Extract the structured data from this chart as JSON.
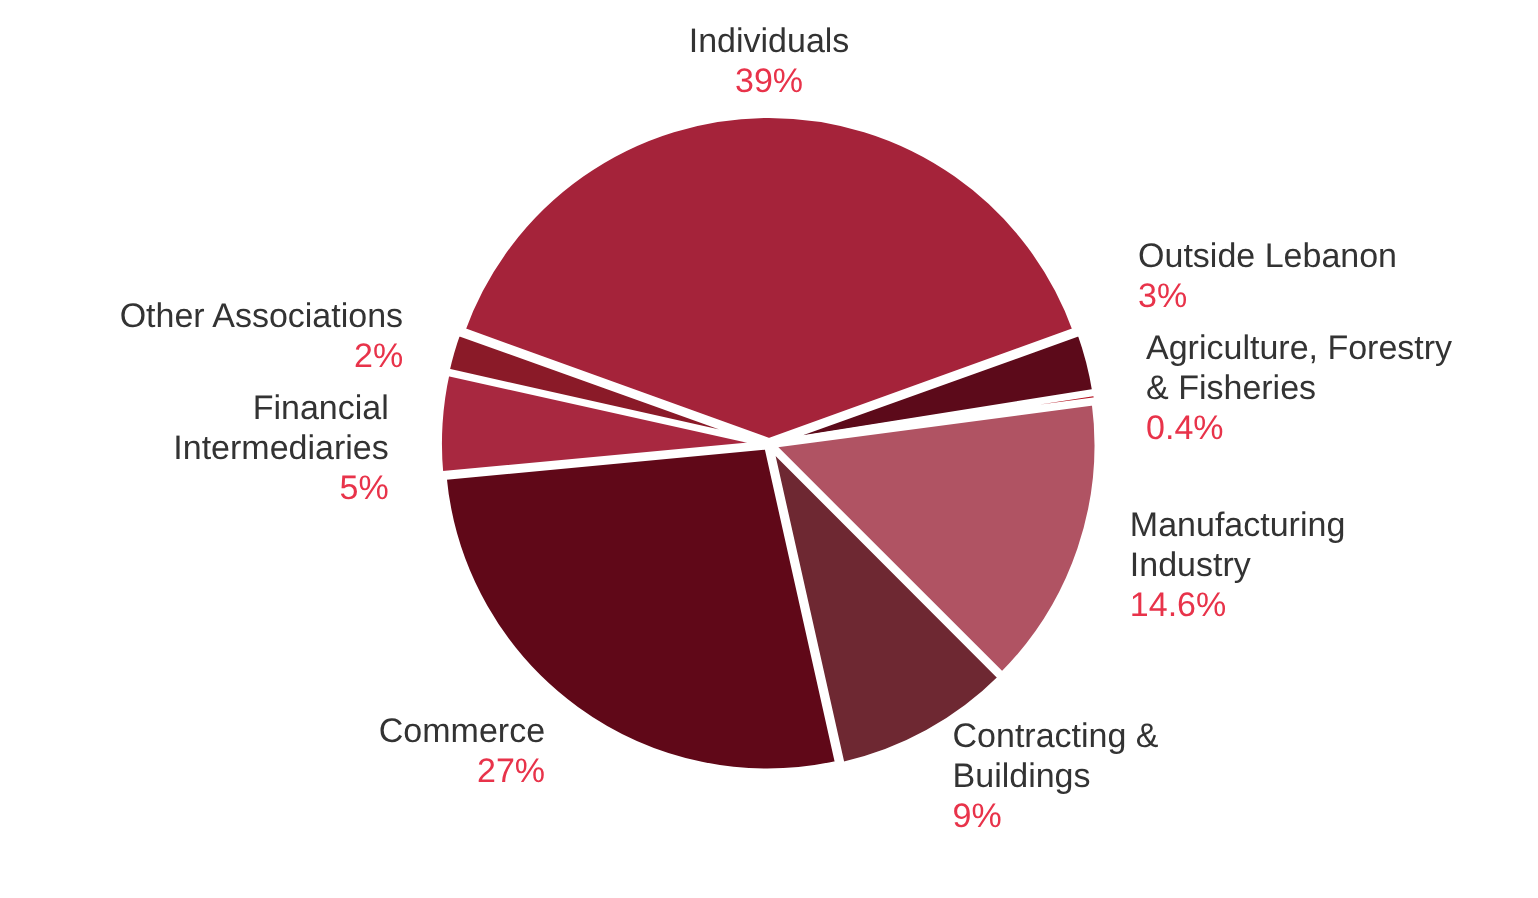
{
  "chart_data": {
    "type": "pie",
    "categories": [
      "Individuals",
      "Outside Lebanon",
      "Agriculture, Forestry & Fisheries",
      "Manufacturing Industry",
      "Contracting & Buildings",
      "Commerce",
      "Financial Intermediaries",
      "Other Associations"
    ],
    "values": [
      39,
      3,
      0.4,
      14.6,
      9,
      27,
      5,
      2
    ],
    "value_labels": [
      "39%",
      "3%",
      "0.4%",
      "14.6%",
      "9%",
      "27%",
      "5%",
      "2%"
    ],
    "colors": [
      "#a5233a",
      "#5c0a1a",
      "#b3101e",
      "#b05363",
      "#6e2832",
      "#600818",
      "#a82840",
      "#8a1a28"
    ],
    "legend": false
  }
}
